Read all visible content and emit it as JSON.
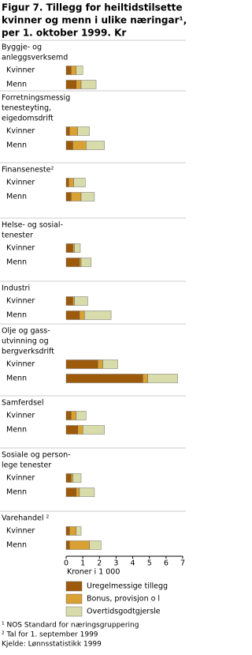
{
  "chart_data": {
    "type": "stacked-barh",
    "title": [
      "Figur 7. Tillegg for heiltidstilsette",
      "kvinner og menn i ulike næringar¹,",
      "per 1. oktober 1999. Kr"
    ],
    "groups": [
      [
        "Byggje- og",
        "anleggsverksemd"
      ],
      [
        "Forretningsmessig",
        "tenesteyting,",
        "eigedomsdrift"
      ],
      [
        "Finanseneste²"
      ],
      [
        "Helse- og sosial-",
        "tenester"
      ],
      [
        "Industri"
      ],
      [
        "Olje og gass-",
        "utvinning og",
        "bergverksdrift"
      ],
      [
        "Samferdsel"
      ],
      [
        "Sosiale og person-",
        "lege tenester"
      ],
      [
        "Varehandel ²"
      ]
    ],
    "categories": [
      "Kvinner",
      "Menn",
      "Kvinner",
      "Menn",
      "Kvinner",
      "Menn",
      "Kvinner",
      "Menn",
      "Kvinner",
      "Menn",
      "Kvinner",
      "Menn",
      "Kvinner",
      "Menn",
      "Kvinner",
      "Menn",
      "Kvinner",
      "Menn"
    ],
    "series": [
      {
        "name": "Uregelmessige tillegg",
        "color": "#9c5a0a",
        "values": [
          0.3,
          0.6,
          0.2,
          0.4,
          0.15,
          0.3,
          0.4,
          0.8,
          0.4,
          0.8,
          1.9,
          4.6,
          0.3,
          0.7,
          0.3,
          0.6,
          0.2,
          0.2
        ]
      },
      {
        "name": "Bonus, provisjon o l",
        "color": "#d9a033",
        "values": [
          0.3,
          0.3,
          0.5,
          0.8,
          0.3,
          0.6,
          0.1,
          0.1,
          0.1,
          0.3,
          0.3,
          0.3,
          0.3,
          0.3,
          0.1,
          0.2,
          0.4,
          1.2
        ]
      },
      {
        "name": "Overtidsgodtgjersle",
        "color": "#d8dcaa",
        "values": [
          0.4,
          0.9,
          0.7,
          1.1,
          0.7,
          0.8,
          0.35,
          0.6,
          0.8,
          1.6,
          0.9,
          1.8,
          0.6,
          1.3,
          0.5,
          0.9,
          0.3,
          0.7
        ]
      }
    ],
    "xlabel": "Kroner i 1 000",
    "xlim": [
      0,
      7
    ],
    "xticks": [
      0,
      1,
      2,
      3,
      4,
      5,
      6,
      7
    ],
    "footnotes": [
      "¹ NOS Standard for næringsgruppering",
      "² Tal for 1. september 1999",
      "Kjelde: Lønnsstatistikk 1999"
    ]
  }
}
